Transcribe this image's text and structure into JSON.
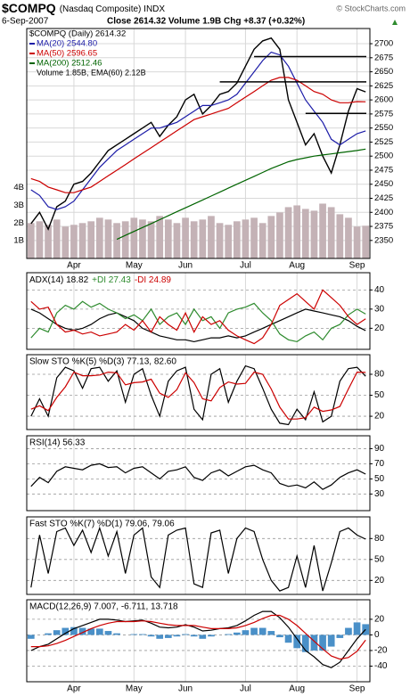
{
  "header": {
    "symbol": "$COMPQ",
    "name": "(Nasdaq Composite) INDX",
    "date": "6-Sep-2007",
    "stats": "Close 2614.32 Volume 1.9B Chg +8.37 (+0.32%)",
    "credit": "© StockCharts.com"
  },
  "chart_data": [
    {
      "type": "line",
      "categories": [
        null,
        null,
        null,
        null,
        null,
        "Apr",
        null,
        null,
        null,
        null,
        null,
        null,
        "May",
        null,
        null,
        null,
        null,
        null,
        "Jun",
        null,
        null,
        null,
        null,
        null,
        null,
        "Jul",
        null,
        null,
        null,
        null,
        null,
        "Aug",
        null,
        null,
        null,
        null,
        null,
        null,
        "Sep",
        null
      ],
      "series": [
        {
          "name": "$COMPQ (Daily) 2614.32",
          "color": "#000000",
          "values": [
            2380,
            2400,
            2370,
            2410,
            2420,
            2450,
            2455,
            2470,
            2490,
            2510,
            2520,
            2530,
            2540,
            2550,
            2560,
            2535,
            2555,
            2570,
            2600,
            2610,
            2575,
            2590,
            2610,
            2615,
            2630,
            2660,
            2690,
            2705,
            2710,
            2690,
            2600,
            2560,
            2520,
            2540,
            2500,
            2470,
            2520,
            2580,
            2620,
            2614.32
          ]
        },
        {
          "name": "MA(20) 2544.80",
          "color": "#1c1ca8",
          "values": [
            2440,
            2430,
            2410,
            2405,
            2410,
            2420,
            2440,
            2460,
            2480,
            2495,
            2510,
            2520,
            2530,
            2540,
            2550,
            2550,
            2555,
            2560,
            2570,
            2580,
            2590,
            2590,
            2595,
            2600,
            2610,
            2630,
            2650,
            2670,
            2685,
            2680,
            2660,
            2630,
            2600,
            2580,
            2560,
            2530,
            2520,
            2530,
            2540,
            2544.8
          ]
        },
        {
          "name": "MA(50) 2596.65",
          "color": "#cc0000",
          "values": [
            2460,
            2455,
            2445,
            2440,
            2435,
            2435,
            2440,
            2445,
            2455,
            2465,
            2475,
            2485,
            2495,
            2505,
            2515,
            2525,
            2535,
            2545,
            2555,
            2565,
            2570,
            2575,
            2580,
            2585,
            2595,
            2605,
            2615,
            2625,
            2635,
            2640,
            2640,
            2635,
            2625,
            2615,
            2610,
            2600,
            2595,
            2595,
            2597,
            2596.65
          ]
        },
        {
          "name": "MA(200) 2512.46",
          "color": "#006400",
          "values": [
            null,
            null,
            null,
            null,
            null,
            null,
            null,
            null,
            null,
            null,
            2352,
            2359,
            2366,
            2373,
            2380,
            2387,
            2394,
            2401,
            2408,
            2415,
            2422,
            2429,
            2436,
            2443,
            2450,
            2457,
            2464,
            2471,
            2478,
            2484,
            2490,
            2494,
            2497,
            2500,
            2502,
            2504,
            2506,
            2508,
            2510,
            2512.46
          ]
        }
      ],
      "ylim": [
        2318,
        2727
      ],
      "yticks": [
        2350,
        2375,
        2400,
        2425,
        2450,
        2475,
        2500,
        2525,
        2550,
        2575,
        2600,
        2625,
        2650,
        2675,
        2700
      ],
      "levels": [
        2677,
        2632,
        2576
      ],
      "volume": {
        "name": "Volume 1.85B, EMA(60) 2.12B",
        "color": "#c4b2b6",
        "values": [
          2.0,
          2.1,
          1.9,
          2.2,
          1.8,
          1.9,
          2.0,
          2.1,
          2.3,
          2.2,
          2.0,
          2.1,
          2.3,
          2.2,
          2.1,
          2.4,
          2.2,
          2.0,
          2.3,
          2.1,
          2.2,
          2.4,
          2.0,
          1.9,
          2.1,
          2.2,
          2.3,
          2.0,
          2.4,
          2.6,
          2.9,
          3.0,
          2.8,
          2.7,
          3.1,
          2.9,
          2.5,
          2.3,
          1.8,
          1.85
        ],
        "ylim": [
          0,
          13
        ],
        "yticks": [
          {
            "value": 1,
            "label": "1B"
          },
          {
            "value": 2,
            "label": "2B"
          },
          {
            "value": 3,
            "label": "3B"
          },
          {
            "value": 4,
            "label": "4B"
          }
        ]
      }
    },
    {
      "type": "line",
      "series": [
        {
          "name": "ADX(14) 18.82",
          "color": "#000000",
          "values": [
            30,
            28,
            25,
            22,
            20,
            19,
            20,
            22,
            25,
            27,
            28,
            26,
            24,
            20,
            18,
            16,
            15,
            14,
            14,
            13,
            14,
            15,
            15,
            16,
            15,
            16,
            18,
            20,
            22,
            24,
            26,
            28,
            30,
            29,
            28,
            27,
            26,
            24,
            21,
            18.82
          ]
        },
        {
          "name": "+DI 27.43",
          "color": "#2e8b2e",
          "values": [
            15,
            20,
            18,
            28,
            32,
            30,
            34,
            31,
            33,
            30,
            28,
            25,
            27,
            24,
            30,
            22,
            26,
            28,
            22,
            30,
            24,
            26,
            20,
            28,
            30,
            31,
            33,
            28,
            24,
            17,
            14,
            13,
            16,
            18,
            14,
            20,
            22,
            27,
            30,
            27.43
          ]
        },
        {
          "name": "-DI 24.89",
          "color": "#cc0000",
          "values": [
            34,
            30,
            31,
            22,
            18,
            19,
            17,
            18,
            16,
            17,
            18,
            22,
            19,
            24,
            18,
            26,
            22,
            19,
            28,
            18,
            26,
            22,
            24,
            19,
            16,
            14,
            12,
            15,
            22,
            32,
            35,
            38,
            34,
            30,
            40,
            36,
            32,
            26,
            22,
            24.89
          ]
        }
      ],
      "ylim": [
        9,
        49
      ],
      "yticks": [
        20,
        30,
        40
      ]
    },
    {
      "type": "line",
      "label": "Slow STO %K(5) %D(3) 77.13, 82.60",
      "series": [
        {
          "color": "#000000",
          "values": [
            20,
            45,
            20,
            75,
            90,
            85,
            60,
            88,
            90,
            70,
            85,
            40,
            80,
            88,
            50,
            20,
            70,
            85,
            90,
            30,
            15,
            80,
            88,
            40,
            70,
            92,
            88,
            60,
            30,
            10,
            8,
            30,
            15,
            55,
            12,
            20,
            70,
            88,
            90,
            77.13
          ]
        },
        {
          "color": "#cc0000",
          "values": [
            30,
            35,
            28,
            47,
            62,
            83,
            78,
            78,
            79,
            83,
            82,
            65,
            68,
            69,
            73,
            53,
            47,
            58,
            82,
            68,
            45,
            42,
            61,
            69,
            66,
            67,
            83,
            80,
            59,
            33,
            16,
            16,
            18,
            33,
            27,
            29,
            34,
            59,
            83,
            82.6
          ]
        }
      ],
      "ylim": [
        1,
        108
      ],
      "yticks": [
        20,
        50,
        80
      ]
    },
    {
      "type": "line",
      "label": "RSI(14) 56.33",
      "series": [
        {
          "color": "#000000",
          "values": [
            40,
            52,
            45,
            60,
            66,
            64,
            62,
            68,
            70,
            65,
            66,
            58,
            64,
            66,
            58,
            50,
            60,
            62,
            66,
            52,
            48,
            58,
            62,
            54,
            60,
            66,
            68,
            62,
            58,
            44,
            40,
            42,
            38,
            46,
            36,
            42,
            52,
            58,
            62,
            56.33
          ]
        }
      ],
      "ylim": [
        8,
        107
      ],
      "yticks": [
        30,
        50,
        70,
        90
      ]
    },
    {
      "type": "line",
      "label": "Fast STO %K(7) %D(1) 79.06, 79.06",
      "series": [
        {
          "color": "#000000",
          "values": [
            10,
            85,
            30,
            90,
            95,
            70,
            92,
            60,
            95,
            55,
            90,
            30,
            85,
            95,
            25,
            10,
            85,
            92,
            95,
            15,
            10,
            88,
            92,
            30,
            80,
            95,
            90,
            50,
            20,
            5,
            10,
            55,
            10,
            70,
            5,
            45,
            90,
            95,
            85,
            79.06
          ]
        }
      ],
      "ylim": [
        0,
        111
      ],
      "yticks": [
        20,
        50,
        80
      ]
    },
    {
      "type": "line",
      "label": "MACD(12,26,9) 7.007, -6.711, 13.718",
      "categories": [
        null,
        null,
        null,
        null,
        null,
        "Apr",
        null,
        null,
        null,
        null,
        null,
        null,
        "May",
        null,
        null,
        null,
        null,
        null,
        "Jun",
        null,
        null,
        null,
        null,
        null,
        null,
        "Jul",
        null,
        null,
        null,
        null,
        null,
        "Aug",
        null,
        null,
        null,
        null,
        null,
        null,
        "Sep",
        null
      ],
      "series": [
        {
          "type": "bar",
          "color": "#4a90c8",
          "values": [
            -5,
            0,
            2,
            6,
            9,
            10,
            9,
            8,
            8,
            5,
            2,
            0,
            1,
            1,
            -2,
            -5,
            -4,
            -2,
            1,
            -2,
            -5,
            -2,
            0,
            1,
            3,
            6,
            9,
            9,
            5,
            -3,
            -10,
            -17,
            -22,
            -20,
            -20,
            -15,
            -4,
            9,
            16,
            13.718
          ]
        },
        {
          "color": "#000000",
          "values": [
            -20,
            -15,
            -12,
            -5,
            2,
            8,
            12,
            16,
            20,
            20,
            19,
            17,
            18,
            19,
            15,
            10,
            9,
            10,
            13,
            10,
            5,
            6,
            8,
            9,
            12,
            18,
            25,
            30,
            30,
            22,
            10,
            -5,
            -20,
            -28,
            -38,
            -42,
            -35,
            -20,
            -5,
            7.007
          ]
        },
        {
          "color": "#cc0000",
          "values": [
            -15,
            -15,
            -14,
            -11,
            -7,
            -2,
            3,
            8,
            12,
            15,
            17,
            17,
            17,
            18,
            17,
            15,
            13,
            12,
            12,
            12,
            10,
            8,
            8,
            8,
            9,
            12,
            16,
            21,
            25,
            25,
            20,
            12,
            2,
            -8,
            -18,
            -27,
            -31,
            -29,
            -21,
            -6.711
          ]
        }
      ],
      "ylim": [
        -60,
        45
      ],
      "yticks": [
        -40,
        -20,
        0,
        20
      ]
    }
  ]
}
